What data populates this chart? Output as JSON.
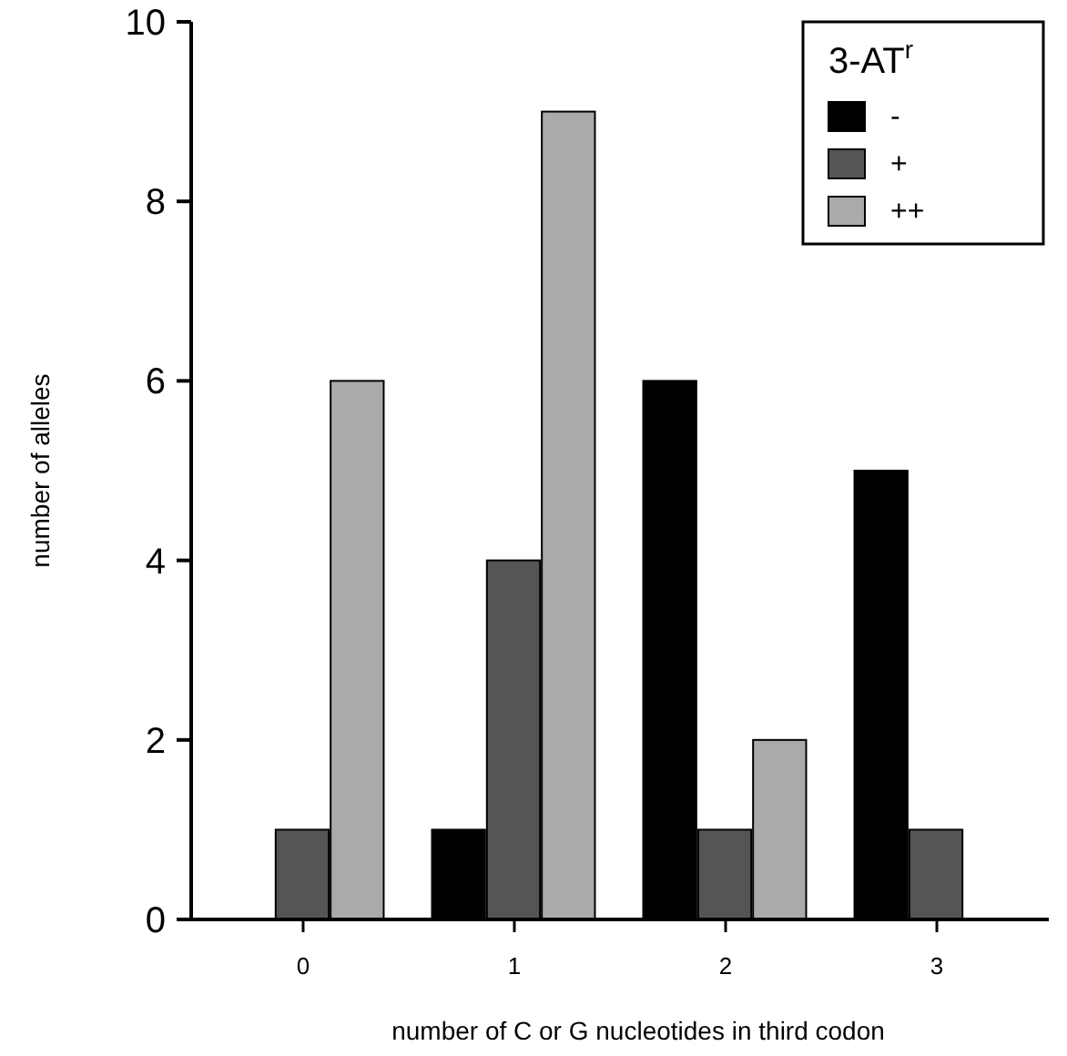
{
  "chart_data": {
    "type": "bar",
    "xlabel": "number of C or G nucleotides in third codon",
    "ylabel": "number of alleles",
    "legend_title": "3-AT$^{r}$",
    "categories": [
      "0",
      "1",
      "2",
      "3"
    ],
    "series": [
      {
        "name": "-",
        "color": "#000000",
        "values": [
          0,
          1,
          6,
          5
        ]
      },
      {
        "name": "+",
        "color": "#555555",
        "values": [
          1,
          4,
          1,
          1
        ]
      },
      {
        "name": "++",
        "color": "#aaaaaa",
        "values": [
          6,
          9,
          2,
          0
        ]
      }
    ],
    "ylim": [
      0,
      10
    ],
    "yticks": [
      0,
      2,
      4,
      6,
      8,
      10
    ],
    "legend": "top right",
    "grid": false
  }
}
